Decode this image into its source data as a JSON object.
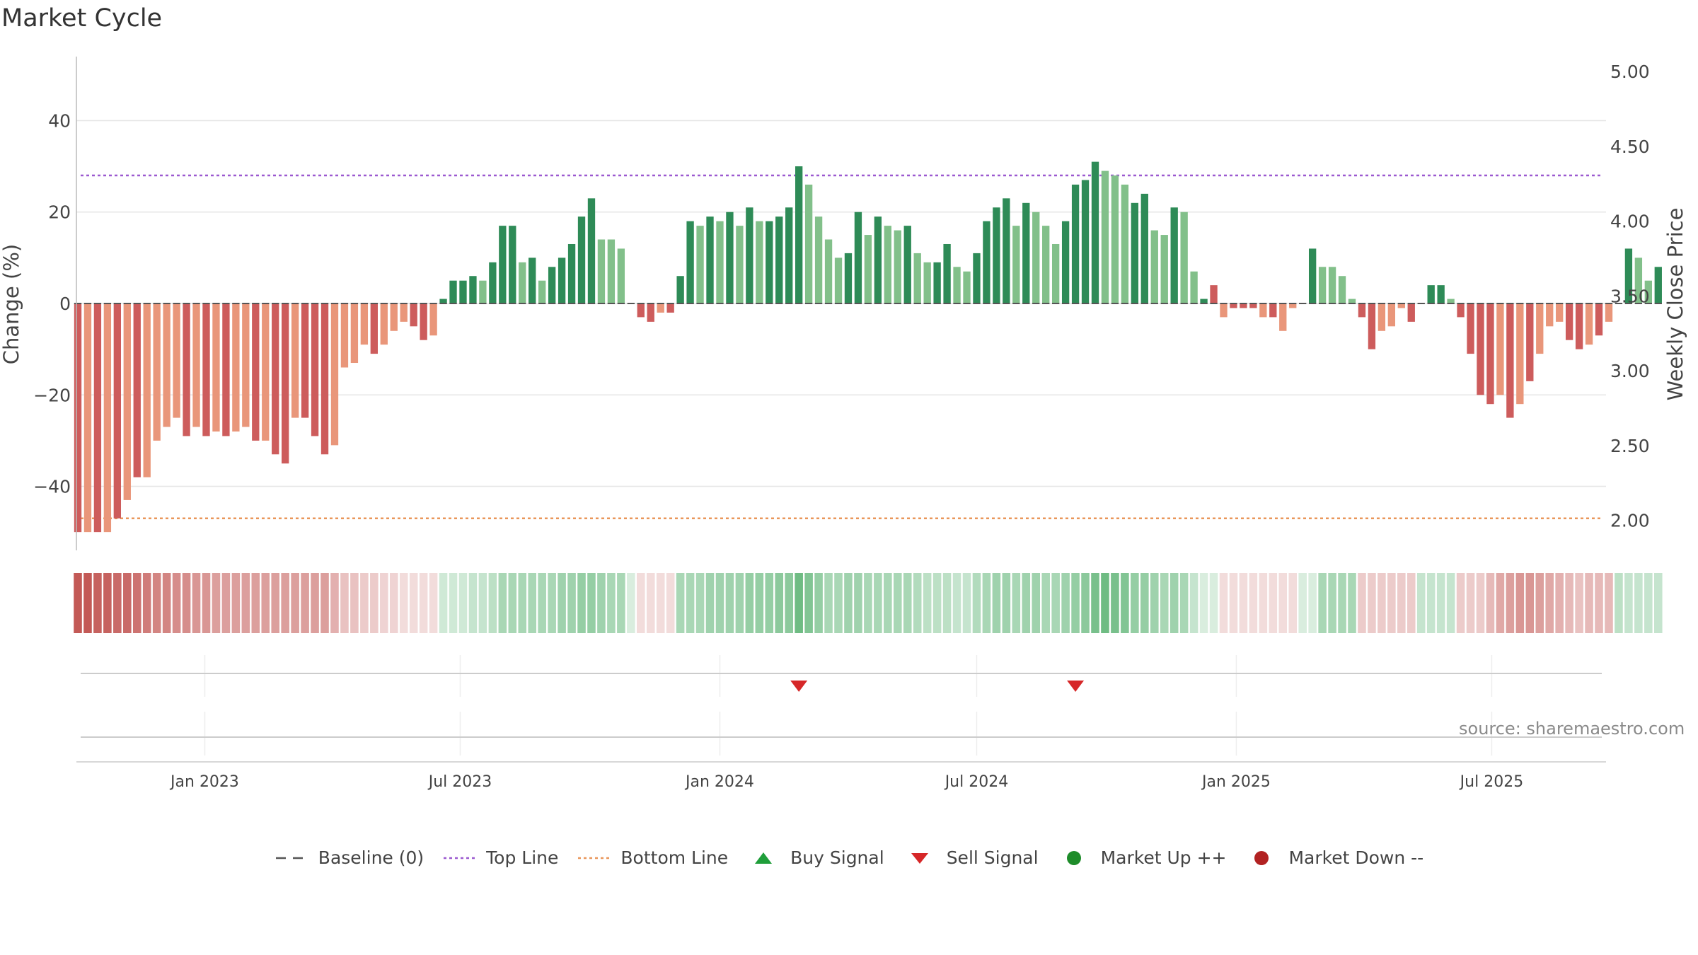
{
  "title": "Market Cycle",
  "source": "source: sharemaestro.com",
  "legend": {
    "baseline": "Baseline (0)",
    "top_line": "Top Line",
    "bottom_line": "Bottom Line",
    "buy_signal": "Buy Signal",
    "sell_signal": "Sell Signal",
    "market_up": "Market Up ++",
    "market_down": "Market Down --"
  },
  "colors": {
    "strong_up": "#2e8b57",
    "up": "#82c08a",
    "strong_down": "#cd5c5c",
    "down": "#e9967a",
    "top_line": "#9b59d0",
    "bottom_line": "#e9965a",
    "sell_signal": "#d62728",
    "buy_signal": "#1f9e3a",
    "market_up": "#1e8c2a",
    "market_down": "#b22222"
  },
  "chart_data": {
    "type": "bar",
    "ylabel": "Change (%)",
    "y2label": "Weekly Close Price",
    "ylim": [
      -54,
      54
    ],
    "y2lim": [
      1.8,
      5.1
    ],
    "yticks": [
      40,
      20,
      0,
      -20,
      -40
    ],
    "ytick_labels": [
      "40",
      "20",
      "0",
      "−20",
      "−40"
    ],
    "y2ticks": [
      5.0,
      4.5,
      4.0,
      3.5,
      3.0,
      2.5,
      2.0
    ],
    "y2tick_labels": [
      "5.00",
      "4.50",
      "4.00",
      "3.50",
      "3.00",
      "2.50",
      "2.00"
    ],
    "top_line": 28,
    "bottom_line": -47,
    "start_date": "2022-10-03",
    "x_range": [
      "2022-10-02",
      "2025-09-20"
    ],
    "xticks": [
      "2023-01-01",
      "2023-07-01",
      "2024-01-01",
      "2024-07-01",
      "2025-01-01",
      "2025-07-01"
    ],
    "xtick_labels": [
      "Jan 2023",
      "Jul 2023",
      "Jan 2024",
      "Jul 2024",
      "Jan 2025",
      "Jul 2025"
    ],
    "values": [
      -50,
      -50,
      -50,
      -50,
      -47,
      -43,
      -38,
      -38,
      -30,
      -27,
      -25,
      -29,
      -27,
      -29,
      -28,
      -29,
      -28,
      -27,
      -30,
      -30,
      -33,
      -35,
      -25,
      -25,
      -29,
      -33,
      -31,
      -14,
      -13,
      -9,
      -11,
      -9,
      -6,
      -4,
      -5,
      -8,
      -7,
      1,
      5,
      5,
      6,
      5,
      9,
      17,
      17,
      9,
      10,
      5,
      8,
      10,
      13,
      19,
      23,
      14,
      14,
      12,
      0,
      -3,
      -4,
      -2,
      -2,
      6,
      18,
      17,
      19,
      18,
      20,
      17,
      21,
      18,
      18,
      19,
      21,
      30,
      26,
      19,
      14,
      10,
      11,
      20,
      15,
      19,
      17,
      16,
      17,
      11,
      9,
      9,
      13,
      8,
      7,
      11,
      18,
      21,
      23,
      17,
      22,
      20,
      17,
      13,
      18,
      26,
      27,
      31,
      29,
      28,
      26,
      22,
      24,
      16,
      15,
      21,
      20,
      7,
      1,
      4,
      -3,
      -1,
      -1,
      -1,
      -3,
      -3,
      -6,
      -1,
      0,
      12,
      8,
      8,
      6,
      1,
      -3,
      -10,
      -6,
      -5,
      -1,
      -4,
      0,
      4,
      4,
      1,
      -3,
      -11,
      -20,
      -22,
      -20,
      -25,
      -22,
      -17,
      -11,
      -5,
      -4,
      -8,
      -10,
      -9,
      -7,
      -4,
      0,
      12,
      10,
      5,
      8
    ],
    "strength": [
      "sd",
      "d",
      "sd",
      "d",
      "sd",
      "d",
      "sd",
      "d",
      "d",
      "d",
      "d",
      "sd",
      "d",
      "sd",
      "d",
      "sd",
      "d",
      "d",
      "sd",
      "d",
      "sd",
      "sd",
      "d",
      "sd",
      "sd",
      "sd",
      "d",
      "d",
      "d",
      "d",
      "sd",
      "d",
      "d",
      "d",
      "sd",
      "sd",
      "d",
      "su",
      "su",
      "su",
      "su",
      "u",
      "su",
      "su",
      "su",
      "u",
      "su",
      "u",
      "su",
      "su",
      "su",
      "su",
      "su",
      "u",
      "u",
      "u",
      "d",
      "sd",
      "sd",
      "d",
      "sd",
      "su",
      "su",
      "u",
      "su",
      "u",
      "su",
      "u",
      "su",
      "u",
      "su",
      "su",
      "su",
      "su",
      "u",
      "u",
      "u",
      "u",
      "su",
      "su",
      "u",
      "su",
      "u",
      "u",
      "su",
      "u",
      "u",
      "su",
      "su",
      "u",
      "u",
      "su",
      "su",
      "su",
      "su",
      "u",
      "su",
      "u",
      "u",
      "u",
      "su",
      "su",
      "su",
      "su",
      "u",
      "u",
      "u",
      "su",
      "su",
      "u",
      "u",
      "su",
      "u",
      "u",
      "su",
      "sd",
      "d",
      "sd",
      "sd",
      "sd",
      "d",
      "sd",
      "d",
      "d",
      "su",
      "su",
      "u",
      "u",
      "u",
      "u",
      "sd",
      "sd",
      "d",
      "d",
      "d",
      "sd",
      "u",
      "su",
      "su",
      "u",
      "sd",
      "sd",
      "sd",
      "sd",
      "d",
      "sd",
      "d",
      "sd",
      "d",
      "d",
      "d",
      "sd",
      "sd",
      "d",
      "sd",
      "d",
      "d",
      "su",
      "u",
      "u",
      "su"
    ],
    "heat_intensity": [
      0.95,
      0.95,
      0.9,
      0.9,
      0.85,
      0.85,
      0.8,
      0.75,
      0.7,
      0.7,
      0.65,
      0.65,
      0.6,
      0.6,
      0.55,
      0.55,
      0.55,
      0.55,
      0.55,
      0.55,
      0.55,
      0.55,
      0.55,
      0.55,
      0.55,
      0.55,
      0.45,
      0.35,
      0.35,
      0.3,
      0.3,
      0.25,
      0.25,
      0.2,
      0.2,
      0.2,
      0.2,
      0.25,
      0.25,
      0.25,
      0.3,
      0.3,
      0.35,
      0.45,
      0.45,
      0.45,
      0.45,
      0.45,
      0.45,
      0.5,
      0.5,
      0.55,
      0.55,
      0.5,
      0.45,
      0.45,
      0.2,
      0.2,
      0.2,
      0.2,
      0.2,
      0.45,
      0.45,
      0.45,
      0.5,
      0.5,
      0.5,
      0.5,
      0.55,
      0.55,
      0.55,
      0.6,
      0.6,
      0.75,
      0.65,
      0.55,
      0.45,
      0.45,
      0.5,
      0.5,
      0.45,
      0.45,
      0.45,
      0.45,
      0.45,
      0.4,
      0.35,
      0.35,
      0.35,
      0.3,
      0.3,
      0.4,
      0.45,
      0.5,
      0.5,
      0.45,
      0.5,
      0.5,
      0.45,
      0.45,
      0.5,
      0.55,
      0.6,
      0.7,
      0.75,
      0.7,
      0.65,
      0.55,
      0.55,
      0.5,
      0.45,
      0.5,
      0.45,
      0.3,
      0.2,
      0.2,
      0.2,
      0.2,
      0.2,
      0.2,
      0.2,
      0.2,
      0.2,
      0.2,
      0.2,
      0.2,
      0.45,
      0.45,
      0.45,
      0.45,
      0.3,
      0.3,
      0.3,
      0.3,
      0.3,
      0.3,
      0.3,
      0.3,
      0.3,
      0.3,
      0.3,
      0.3,
      0.3,
      0.4,
      0.5,
      0.55,
      0.6,
      0.6,
      0.55,
      0.5,
      0.45,
      0.4,
      0.35,
      0.4,
      0.4,
      0.4,
      0.35,
      0.3,
      0.3,
      0.3,
      0.3,
      0.3
    ],
    "sell_signals": [
      "2024-02-26",
      "2024-09-09"
    ],
    "buy_signals": [],
    "grid": true
  }
}
